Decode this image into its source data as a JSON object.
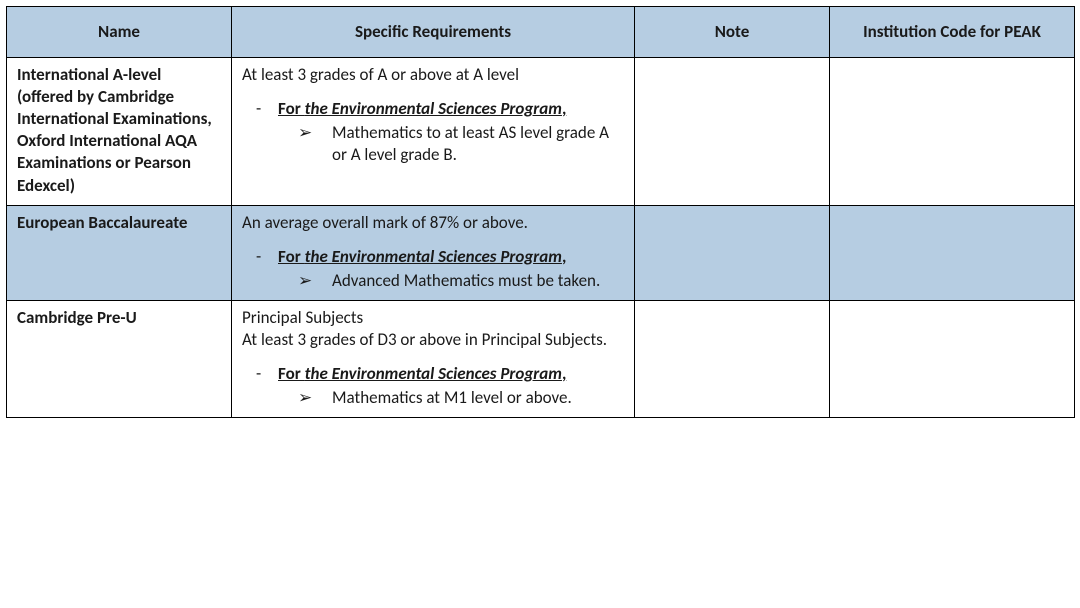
{
  "table": {
    "headers": {
      "name": "Name",
      "spec": "Specific Requirements",
      "note": "Note",
      "code": "Institution Code for PEAK"
    },
    "column_widths": [
      "225px",
      "403px",
      "195px",
      "245px"
    ],
    "row_background_shaded": "#b6cde2",
    "border_color": "#000000",
    "program_label_prefix": "For ",
    "program_label_main": "the Environmental Sciences Program",
    "program_label_comma": ",",
    "dash_glyph": "-",
    "arrow_glyph": "➢",
    "rows": [
      {
        "name": "International A-level (offered by Cambridge International Examinations, Oxford International AQA Examinations or Pearson Edexcel)",
        "shaded": false,
        "spec_intro": "At least 3 grades of A or above at A level",
        "spec_bullet": "Mathematics to at least AS level grade A or A level grade B.",
        "note": "",
        "code": ""
      },
      {
        "name": "European Baccalaureate",
        "shaded": true,
        "spec_intro": "An average overall mark of 87% or above.",
        "spec_bullet": "Advanced Mathematics must be taken.",
        "note": "",
        "code": ""
      },
      {
        "name": "Cambridge Pre-U",
        "shaded": false,
        "spec_intro": "Principal Subjects\nAt least 3 grades of D3 or above in Principal Subjects.",
        "spec_bullet": "Mathematics at M1 level or above.",
        "note": "",
        "code": ""
      }
    ]
  }
}
